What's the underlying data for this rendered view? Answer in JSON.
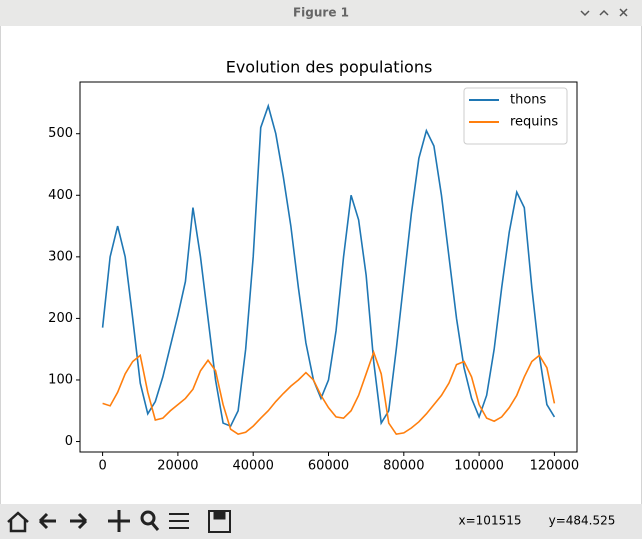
{
  "window": {
    "title": "Figure 1"
  },
  "chart_data": {
    "type": "line",
    "title": "Evolution des populations",
    "x": [
      0,
      2000,
      4000,
      6000,
      8000,
      10000,
      12000,
      14000,
      16000,
      18000,
      20000,
      22000,
      24000,
      26000,
      28000,
      30000,
      32000,
      34000,
      36000,
      38000,
      40000,
      42000,
      44000,
      46000,
      48000,
      50000,
      52000,
      54000,
      56000,
      58000,
      60000,
      62000,
      64000,
      66000,
      68000,
      70000,
      72000,
      74000,
      76000,
      78000,
      80000,
      82000,
      84000,
      86000,
      88000,
      90000,
      92000,
      94000,
      96000,
      98000,
      100000,
      102000,
      104000,
      106000,
      108000,
      110000,
      112000,
      114000,
      116000,
      118000,
      120000
    ],
    "series": [
      {
        "name": "thons",
        "color": "#1f77b4",
        "values": [
          185,
          300,
          350,
          300,
          200,
          95,
          45,
          65,
          105,
          155,
          205,
          260,
          380,
          300,
          200,
          100,
          30,
          25,
          50,
          150,
          300,
          510,
          545,
          500,
          430,
          350,
          250,
          160,
          100,
          70,
          100,
          180,
          300,
          400,
          360,
          270,
          130,
          30,
          50,
          150,
          260,
          370,
          460,
          505,
          480,
          400,
          300,
          200,
          120,
          70,
          40,
          75,
          150,
          250,
          340,
          405,
          380,
          250,
          140,
          60,
          40
        ]
      },
      {
        "name": "requins",
        "color": "#ff7f0e",
        "values": [
          62,
          58,
          80,
          110,
          130,
          140,
          80,
          35,
          38,
          50,
          60,
          70,
          85,
          115,
          132,
          115,
          60,
          20,
          12,
          15,
          25,
          38,
          50,
          65,
          78,
          90,
          100,
          112,
          100,
          75,
          55,
          40,
          38,
          50,
          75,
          110,
          145,
          110,
          30,
          12,
          14,
          22,
          32,
          45,
          60,
          75,
          95,
          125,
          130,
          105,
          60,
          38,
          33,
          40,
          55,
          75,
          105,
          130,
          140,
          120,
          62
        ]
      }
    ],
    "xlim": [
      -6000,
      126000
    ],
    "ylim": [
      -17,
      584
    ],
    "xticks": [
      0,
      20000,
      40000,
      60000,
      80000,
      100000,
      120000
    ],
    "yticks": [
      0,
      100,
      200,
      300,
      400,
      500
    ],
    "legend": "upper right"
  },
  "status": {
    "x": "x=101515",
    "y": "y=484.525"
  }
}
